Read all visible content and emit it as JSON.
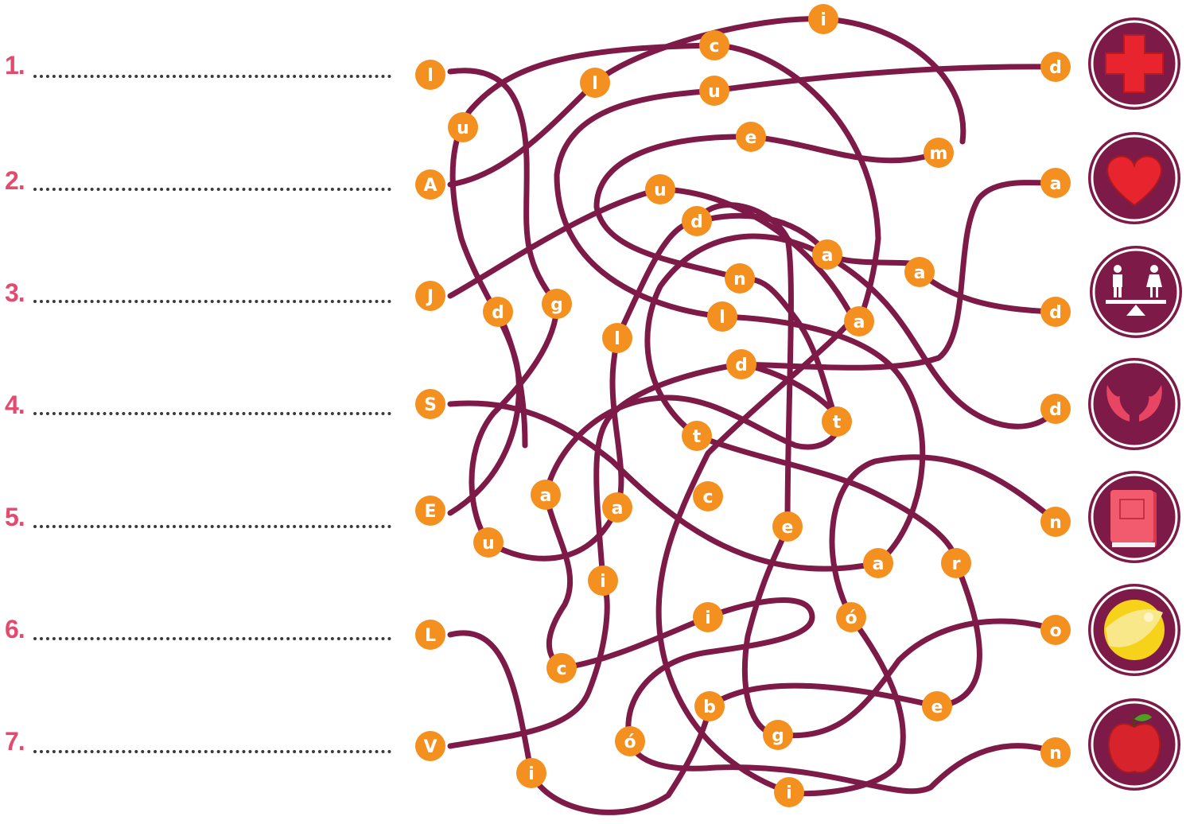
{
  "colors": {
    "path": "#7d1a48",
    "bead": "#f3901f",
    "bead_text": "#ffffff",
    "number": "#e5496d",
    "icon_ring": "#7d1a48"
  },
  "rows": [
    {
      "number": "1.",
      "start_letter": "l",
      "end_letter": "d",
      "icon": "red-cross-icon"
    },
    {
      "number": "2.",
      "start_letter": "A",
      "end_letter": "a",
      "icon": "heart-icon"
    },
    {
      "number": "3.",
      "start_letter": "J",
      "end_letter": "d",
      "icon": "equality-scale-icon"
    },
    {
      "number": "4.",
      "start_letter": "S",
      "end_letter": "d",
      "icon": "wings-icon"
    },
    {
      "number": "5.",
      "start_letter": "E",
      "end_letter": "n",
      "icon": "book-icon"
    },
    {
      "number": "6.",
      "start_letter": "L",
      "end_letter": "o",
      "icon": "beach-ball-icon"
    },
    {
      "number": "7.",
      "start_letter": "V",
      "end_letter": "n",
      "icon": "apple-icon"
    }
  ],
  "maze_letters": [
    "u",
    "l",
    "c",
    "i",
    "u",
    "e",
    "m",
    "u",
    "d",
    "a",
    "a",
    "n",
    "l",
    "a",
    "d",
    "g",
    "l",
    "d",
    "t",
    "t",
    "a",
    "a",
    "c",
    "e",
    "u",
    "i",
    "a",
    "r",
    "i",
    "ó",
    "c",
    "e",
    "b",
    "g",
    "ó",
    "i",
    "i"
  ]
}
